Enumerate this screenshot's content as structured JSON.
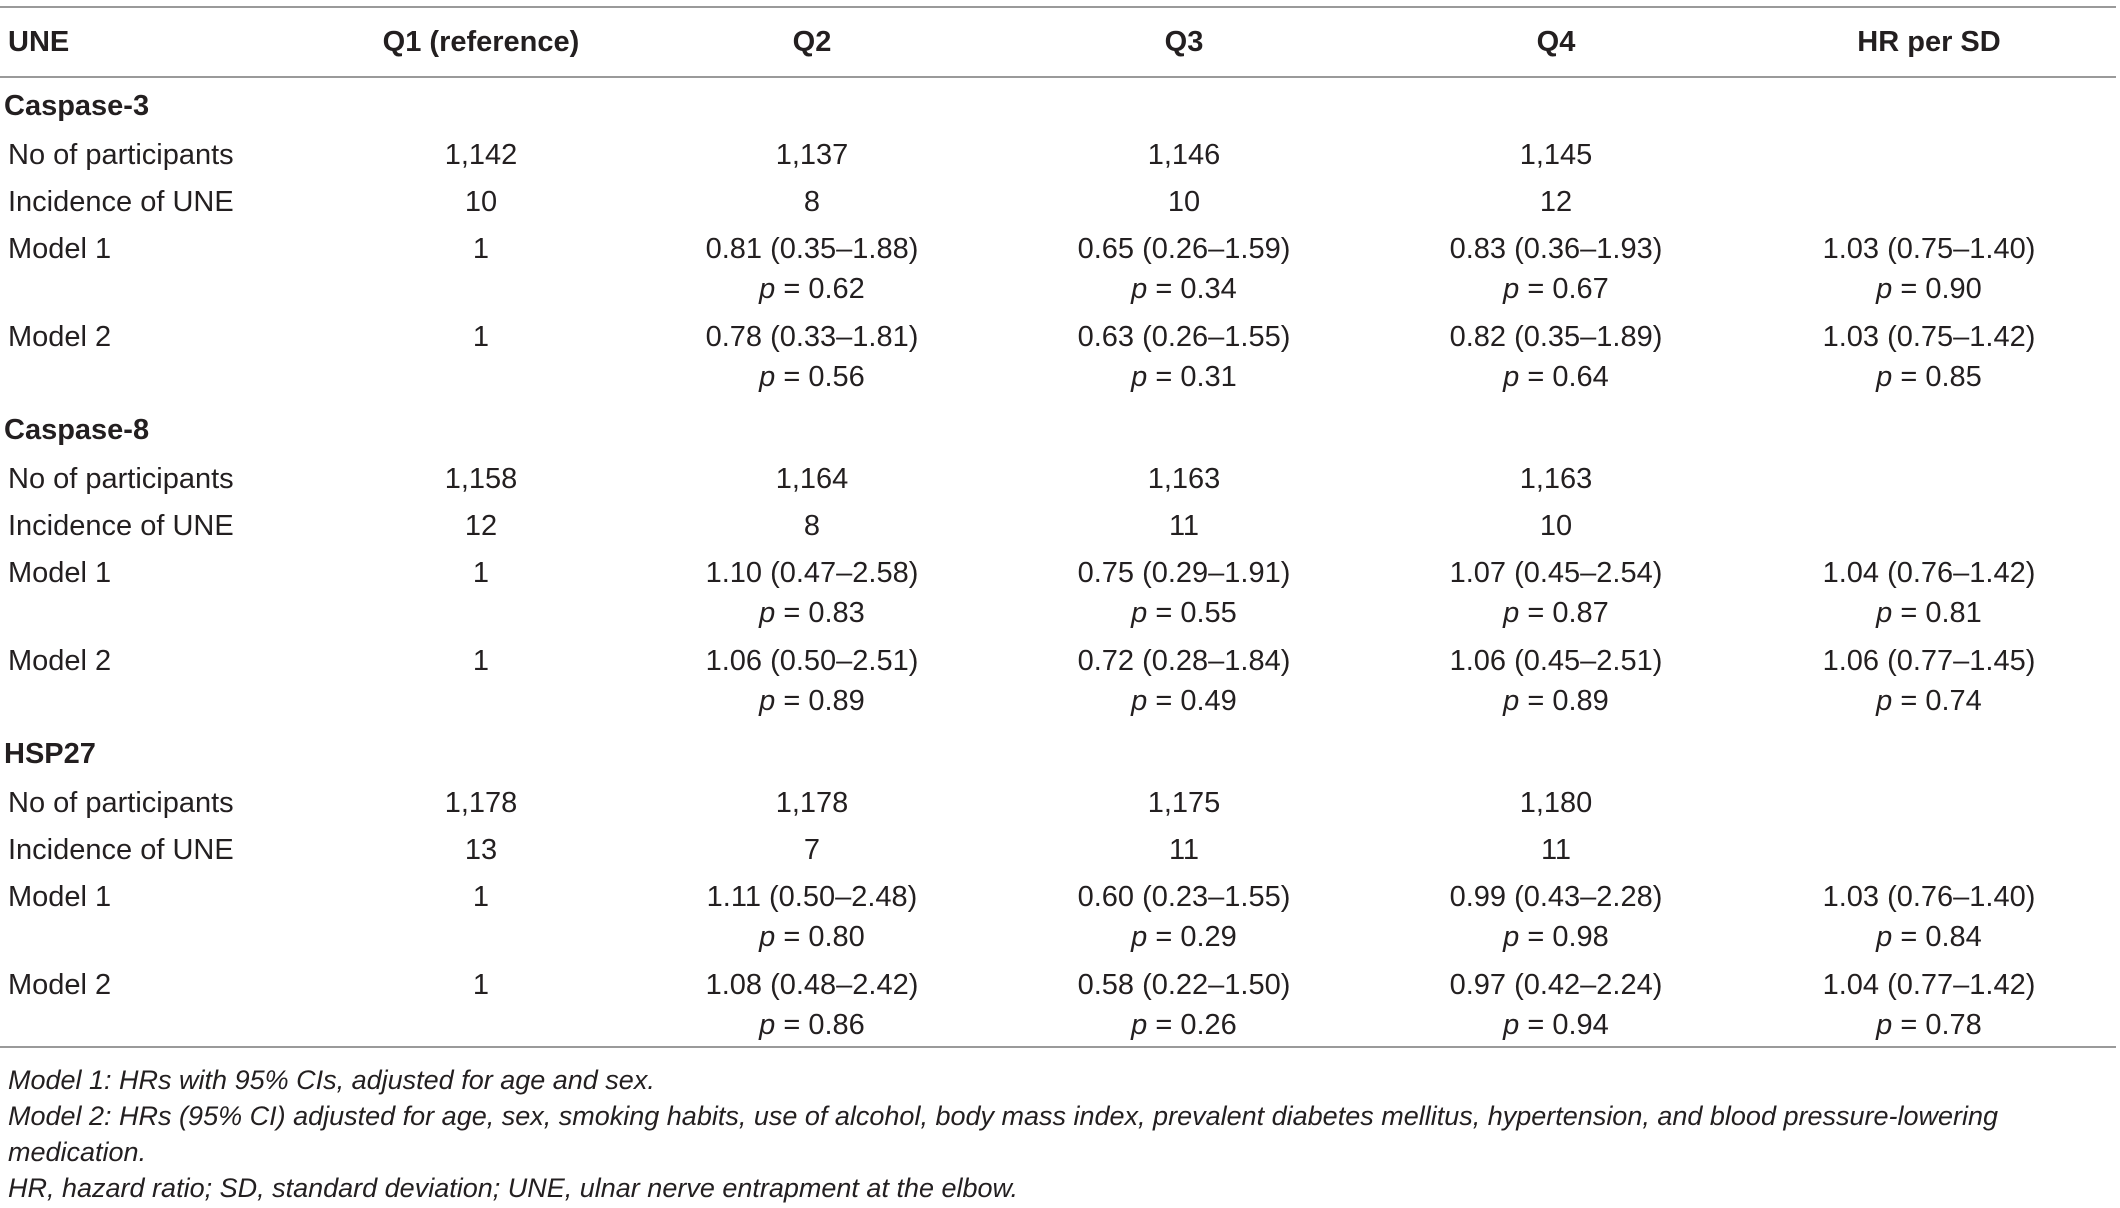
{
  "header": {
    "col0": "UNE",
    "col1": "Q1 (reference)",
    "col2": "Q2",
    "col3": "Q3",
    "col4": "Q4",
    "col5": "HR per SD"
  },
  "p_prefix": "p",
  "sections": [
    {
      "name": "Caspase-3",
      "participants": {
        "label": "No of participants",
        "q1": "1,142",
        "q2": "1,137",
        "q3": "1,146",
        "q4": "1,145"
      },
      "incidence": {
        "label": "Incidence of UNE",
        "q1": "10",
        "q2": "8",
        "q3": "10",
        "q4": "12"
      },
      "model1": {
        "label": "Model 1",
        "q1": "1",
        "q2": "0.81 (0.35–1.88)",
        "q2_p": " = 0.62",
        "q3": "0.65 (0.26–1.59)",
        "q3_p": " = 0.34",
        "q4": "0.83 (0.36–1.93)",
        "q4_p": " = 0.67",
        "sd": "1.03 (0.75–1.40)",
        "sd_p": " = 0.90"
      },
      "model2": {
        "label": "Model 2",
        "q1": "1",
        "q2": "0.78 (0.33–1.81)",
        "q2_p": " = 0.56",
        "q3": "0.63 (0.26–1.55)",
        "q3_p": " = 0.31",
        "q4": "0.82 (0.35–1.89)",
        "q4_p": " = 0.64",
        "sd": "1.03 (0.75–1.42)",
        "sd_p": " = 0.85"
      }
    },
    {
      "name": "Caspase-8",
      "participants": {
        "label": "No of participants",
        "q1": "1,158",
        "q2": "1,164",
        "q3": "1,163",
        "q4": "1,163"
      },
      "incidence": {
        "label": "Incidence of UNE",
        "q1": "12",
        "q2": "8",
        "q3": "11",
        "q4": "10"
      },
      "model1": {
        "label": "Model 1",
        "q1": "1",
        "q2": "1.10 (0.47–2.58)",
        "q2_p": " = 0.83",
        "q3": "0.75 (0.29–1.91)",
        "q3_p": " = 0.55",
        "q4": "1.07 (0.45–2.54)",
        "q4_p": " = 0.87",
        "sd": "1.04 (0.76–1.42)",
        "sd_p": " = 0.81"
      },
      "model2": {
        "label": "Model 2",
        "q1": "1",
        "q2": "1.06 (0.50–2.51)",
        "q2_p": " = 0.89",
        "q3": "0.72 (0.28–1.84)",
        "q3_p": " = 0.49",
        "q4": "1.06 (0.45–2.51)",
        "q4_p": " = 0.89",
        "sd": "1.06 (0.77–1.45)",
        "sd_p": " = 0.74"
      }
    },
    {
      "name": "HSP27",
      "participants": {
        "label": "No of participants",
        "q1": "1,178",
        "q2": "1,178",
        "q3": "1,175",
        "q4": "1,180"
      },
      "incidence": {
        "label": "Incidence of UNE",
        "q1": "13",
        "q2": "7",
        "q3": "11",
        "q4": "11"
      },
      "model1": {
        "label": "Model 1",
        "q1": "1",
        "q2": "1.11 (0.50–2.48)",
        "q2_p": " = 0.80",
        "q3": "0.60 (0.23–1.55)",
        "q3_p": " = 0.29",
        "q4": "0.99 (0.43–2.28)",
        "q4_p": " = 0.98",
        "sd": "1.03 (0.76–1.40)",
        "sd_p": " = 0.84"
      },
      "model2": {
        "label": "Model 2",
        "q1": "1",
        "q2": "1.08 (0.48–2.42)",
        "q2_p": " = 0.86",
        "q3": "0.58 (0.22–1.50)",
        "q3_p": " = 0.26",
        "q4": "0.97 (0.42–2.24)",
        "q4_p": " = 0.94",
        "sd": "1.04 (0.77–1.42)",
        "sd_p": " = 0.78"
      }
    }
  ],
  "footnotes": {
    "model1": "Model 1: HRs with 95% CIs, adjusted for age and sex.",
    "model2": "Model 2: HRs (95% CI) adjusted for age, sex, smoking habits, use of alcohol, body mass index, prevalent diabetes mellitus, hypertension, and blood pressure-lowering medication.",
    "abbrev": "HR, hazard ratio; SD, standard deviation; UNE, ulnar nerve entrapment at the elbow."
  }
}
